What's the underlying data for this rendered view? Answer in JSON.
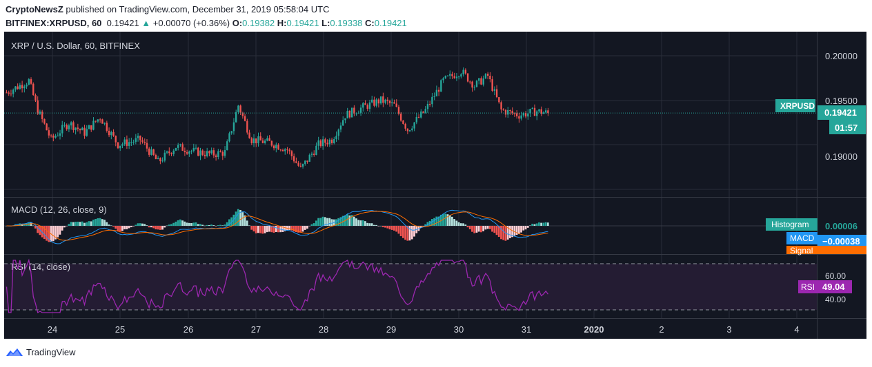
{
  "header": {
    "author": "CryptoNewsZ",
    "published_text": "published on TradingView.com, December 31, 2019 05:58:04 UTC",
    "symbol": "BITFINEX:XRPUSD, 60",
    "price": "0.19421",
    "change_arrow": "▲",
    "change": "+0.00070 (+0.36%)",
    "o_label": "O:",
    "o_value": "0.19382",
    "h_label": "H:",
    "h_value": "0.19421",
    "l_label": "L:",
    "l_value": "0.19338",
    "c_label": "C:",
    "c_value": "0.19421"
  },
  "main_pane": {
    "title": "XRP / U.S. Dollar, 60, BITFINEX",
    "price_labels": [
      "0.20000",
      "0.19500",
      "0.19000"
    ],
    "symbol_tag": "XRPUSD",
    "last_price_tag": "0.19421",
    "countdown_tag": "01:57"
  },
  "macd_pane": {
    "title": "MACD (12, 26, close, 9)",
    "histogram_tag": "Histogram",
    "histogram_value": "0.00006",
    "macd_tag": "MACD",
    "macd_value": "−0.00038",
    "signal_tag": "Signal"
  },
  "rsi_pane": {
    "title": "RSI (14, close)",
    "levels": [
      "60.00",
      "40.00"
    ],
    "rsi_tag": "RSI",
    "rsi_value": "49.04"
  },
  "time_axis": [
    "24",
    "25",
    "26",
    "27",
    "28",
    "29",
    "30",
    "31",
    "2020",
    "2",
    "3",
    "4"
  ],
  "footer": {
    "brand": "TradingView"
  },
  "colors": {
    "up": "#26a69a",
    "down": "#ef5350",
    "background": "#131722",
    "macd": "#2196f3",
    "signal": "#ff6d00",
    "rsi": "#9c27b0"
  },
  "chart_data": {
    "type": "candlestick",
    "ylim": [
      0.1865,
      0.2025
    ],
    "series_keypoints": [
      {
        "x": 0,
        "y": 0.1963
      },
      {
        "x": 10,
        "y": 0.1975
      },
      {
        "x": 14,
        "y": 0.1945
      },
      {
        "x": 20,
        "y": 0.1915
      },
      {
        "x": 28,
        "y": 0.1932
      },
      {
        "x": 35,
        "y": 0.1922
      },
      {
        "x": 42,
        "y": 0.1938
      },
      {
        "x": 50,
        "y": 0.191
      },
      {
        "x": 60,
        "y": 0.1915
      },
      {
        "x": 68,
        "y": 0.1892
      },
      {
        "x": 76,
        "y": 0.1908
      },
      {
        "x": 84,
        "y": 0.1903
      },
      {
        "x": 92,
        "y": 0.19
      },
      {
        "x": 98,
        "y": 0.1902
      },
      {
        "x": 104,
        "y": 0.195
      },
      {
        "x": 110,
        "y": 0.1915
      },
      {
        "x": 118,
        "y": 0.1912
      },
      {
        "x": 126,
        "y": 0.1905
      },
      {
        "x": 132,
        "y": 0.1885
      },
      {
        "x": 140,
        "y": 0.191
      },
      {
        "x": 146,
        "y": 0.1915
      },
      {
        "x": 152,
        "y": 0.194
      },
      {
        "x": 160,
        "y": 0.1948
      },
      {
        "x": 168,
        "y": 0.1955
      },
      {
        "x": 174,
        "y": 0.195
      },
      {
        "x": 180,
        "y": 0.1925
      },
      {
        "x": 188,
        "y": 0.1945
      },
      {
        "x": 196,
        "y": 0.1975
      },
      {
        "x": 204,
        "y": 0.1985
      },
      {
        "x": 210,
        "y": 0.197
      },
      {
        "x": 216,
        "y": 0.198
      },
      {
        "x": 222,
        "y": 0.1945
      },
      {
        "x": 230,
        "y": 0.194
      },
      {
        "x": 238,
        "y": 0.1944
      },
      {
        "x": 243,
        "y": 0.1942
      }
    ],
    "last_close": 0.19421
  }
}
